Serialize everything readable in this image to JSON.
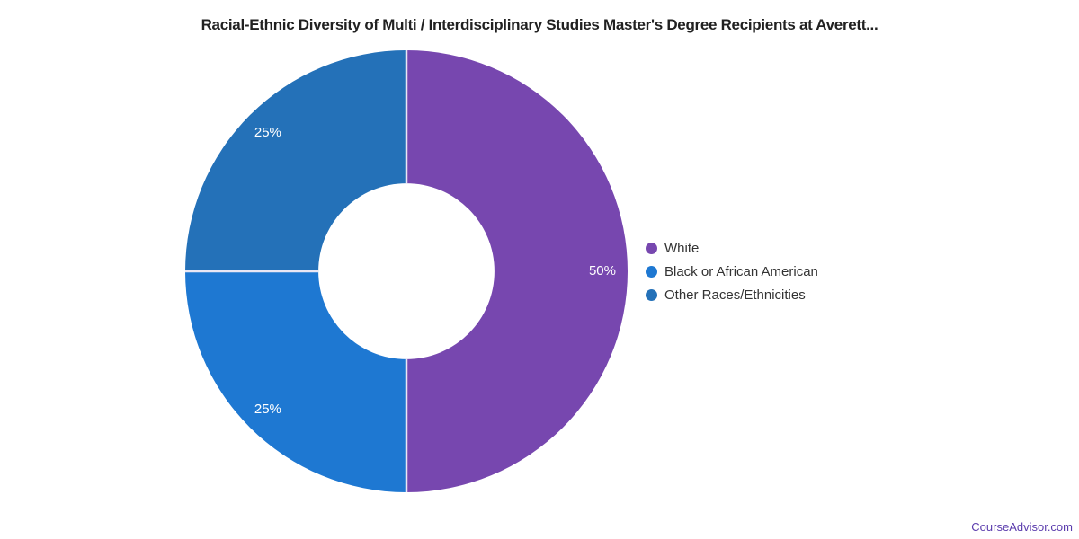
{
  "title": "Racial-Ethnic Diversity of Multi / Interdisciplinary Studies Master's Degree Recipients at Averett...",
  "footer": {
    "link_label": "CourseAdvisor.com",
    "link_color": "#5b3cad"
  },
  "chart_data": {
    "type": "pie",
    "subtype": "donut",
    "title": "Racial-Ethnic Diversity of Multi / Interdisciplinary Studies Master's Degree Recipients at Averett...",
    "categories": [
      "White",
      "Black or African American",
      "Other Races/Ethnicities"
    ],
    "values": [
      50,
      25,
      25
    ],
    "unit": "%",
    "slice_labels": [
      "50%",
      "25%",
      "25%"
    ],
    "colors": [
      "#7747af",
      "#1e78d2",
      "#2471b8"
    ],
    "divider_color": "#e9e6f4",
    "start_angle_deg": 0,
    "direction": "clockwise",
    "inner_radius_ratio": 0.398,
    "label_radius_ratio": 0.886,
    "legend_position": "right",
    "legend": [
      {
        "label": "White",
        "color": "#7747af"
      },
      {
        "label": "Black or African American",
        "color": "#1e78d2"
      },
      {
        "label": "Other Races/Ethnicities",
        "color": "#2471b8"
      }
    ]
  }
}
